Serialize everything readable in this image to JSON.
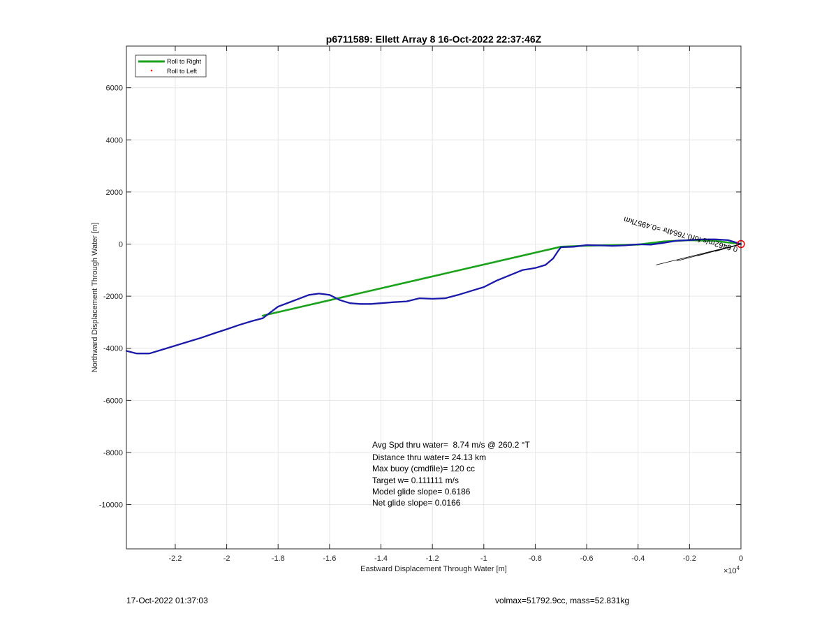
{
  "chart_data": {
    "type": "line",
    "title": "p6711589: Ellett Array 8 16-Oct-2022 22:37:46Z",
    "xlabel": "Eastward Displacement Through Water [m]",
    "ylabel": "Northward Displacement Through Water [m]",
    "x_exponent_label": "×10",
    "x_exponent_power": "4",
    "xlim": [
      -23900,
      0
    ],
    "ylim": [
      -11700,
      7600
    ],
    "x_ticks": [
      -22000,
      -20000,
      -18000,
      -16000,
      -14000,
      -12000,
      -10000,
      -8000,
      -6000,
      -4000,
      -2000,
      0
    ],
    "x_tick_labels": [
      "-2.2",
      "-2",
      "-1.8",
      "-1.6",
      "-1.4",
      "-1.2",
      "-1",
      "-0.8",
      "-0.6",
      "-0.4",
      "-0.2",
      "0"
    ],
    "y_ticks": [
      -10000,
      -8000,
      -6000,
      -4000,
      -2000,
      0,
      2000,
      4000,
      6000
    ],
    "y_tick_labels": [
      "-10000",
      "-8000",
      "-6000",
      "-4000",
      "-2000",
      "0",
      "2000",
      "4000",
      "6000"
    ],
    "grid": true,
    "legend": {
      "placement": "top-left",
      "entries": [
        {
          "label": "Roll to Right",
          "color": "#1aa31a",
          "style": "line"
        },
        {
          "label": "Roll to Left",
          "color": "#ff0000",
          "style": "dot"
        }
      ]
    },
    "series": [
      {
        "color": "#1aa31a",
        "x": [
          -18600,
          -7000,
          -6000,
          -4000,
          -3000,
          -2000,
          -1000,
          0
        ],
        "y": [
          -2750,
          -100,
          -60,
          -20,
          100,
          150,
          120,
          0
        ]
      },
      {
        "color": "#1a1aaa",
        "x": [
          -23900,
          -23500,
          -23000,
          -22500,
          -22000,
          -21500,
          -21000,
          -20500,
          -20000,
          -19500,
          -19000,
          -18600,
          -18400,
          -18000,
          -17600,
          -17200,
          -16800,
          -16400,
          -16000,
          -15600,
          -15200,
          -14800,
          -14400,
          -14000,
          -13500,
          -13000,
          -12500,
          -12000,
          -11500,
          -11000,
          -10500,
          -10000,
          -9500,
          -9000,
          -8500,
          -8000,
          -7600,
          -7300,
          -7100,
          -7000,
          -6500,
          -6000,
          -5500,
          -5000,
          -4500,
          -4000,
          -3500,
          -3000,
          -2500,
          -2000,
          -1500,
          -1000,
          -500,
          0
        ],
        "y": [
          -4100,
          -4200,
          -4200,
          -4050,
          -3900,
          -3750,
          -3600,
          -3430,
          -3270,
          -3100,
          -2950,
          -2850,
          -2700,
          -2400,
          -2250,
          -2100,
          -1950,
          -1900,
          -1950,
          -2150,
          -2270,
          -2300,
          -2300,
          -2270,
          -2230,
          -2200,
          -2080,
          -2100,
          -2080,
          -1950,
          -1800,
          -1650,
          -1400,
          -1200,
          -1000,
          -920,
          -800,
          -550,
          -250,
          -120,
          -100,
          -40,
          -50,
          -70,
          -50,
          -10,
          -20,
          50,
          130,
          150,
          180,
          180,
          150,
          0
        ]
      }
    ],
    "text_annotations": [
      "Avg Spd thru water=  8.74 m/s @ 260.2 °T",
      "Distance thru water= 24.13 km",
      "Max buoy (cmdfile)= 120 cc",
      "Target w= 0.111111 m/s",
      "Model glide slope= 0.6186",
      "Net glide slope= 0.0166"
    ],
    "rotated_annotation": "0.6462m/s for0.7664hr =0.4957km"
  },
  "footer": {
    "timestamp": "17-Oct-2022 01:37:03",
    "summary": "volmax=51792.9cc, mass=52.831kg"
  }
}
